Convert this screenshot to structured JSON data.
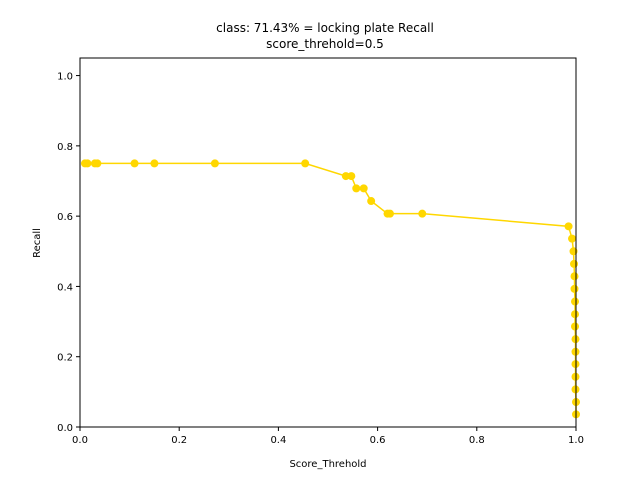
{
  "chart_data": {
    "type": "line",
    "title": "class: 71.43% = locking plate Recall",
    "subtitle": "score_threhold=0.5",
    "xlabel": "Score_Threhold",
    "ylabel": "Recall",
    "xlim": [
      0.0,
      1.0
    ],
    "ylim": [
      0.0,
      1.05
    ],
    "xticks": [
      "0.0",
      "0.2",
      "0.4",
      "0.6",
      "0.8",
      "1.0"
    ],
    "yticks": [
      "0.0",
      "0.2",
      "0.4",
      "0.6",
      "0.8",
      "1.0"
    ],
    "grid": false,
    "legend": "none",
    "series": [
      {
        "color": "#ffd700",
        "marker": "circle",
        "x": [
          0.01,
          0.015,
          0.03,
          0.035,
          0.11,
          0.15,
          0.272,
          0.454,
          0.536,
          0.547,
          0.557,
          0.572,
          0.587,
          0.62,
          0.625,
          0.69,
          0.985,
          0.992,
          0.995,
          0.996,
          0.997,
          0.997,
          0.998,
          0.998,
          0.998,
          0.999,
          0.999,
          0.999,
          0.999,
          0.999,
          1.0,
          1.0
        ],
        "y": [
          0.75,
          0.75,
          0.75,
          0.75,
          0.75,
          0.75,
          0.75,
          0.75,
          0.714,
          0.714,
          0.679,
          0.679,
          0.643,
          0.607,
          0.607,
          0.607,
          0.571,
          0.536,
          0.5,
          0.464,
          0.429,
          0.393,
          0.357,
          0.321,
          0.286,
          0.25,
          0.214,
          0.179,
          0.143,
          0.107,
          0.071,
          0.036
        ]
      }
    ]
  }
}
